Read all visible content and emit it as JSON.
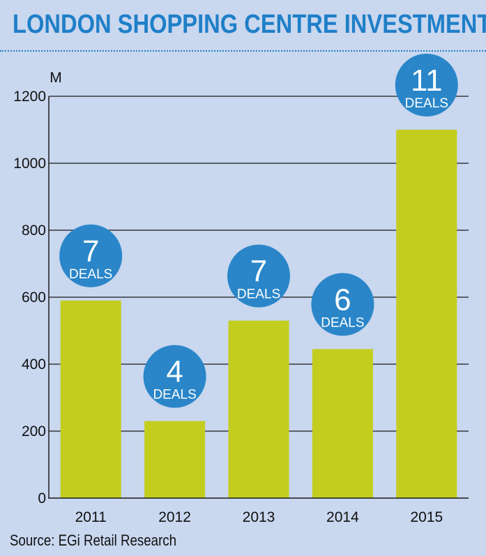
{
  "title": "LONDON SHOPPING CENTRE INVESTMENT",
  "source": "Source: EGi Retail Research",
  "colors": {
    "background": "#c9d7ef",
    "bar": "#c3cd1e",
    "bubble": "#2a86c8",
    "title": "#1f7fc8",
    "grid": "#1a1a1a"
  },
  "chart_data": {
    "type": "bar",
    "categories": [
      "2011",
      "2012",
      "2013",
      "2014",
      "2015"
    ],
    "values": [
      590,
      230,
      530,
      445,
      1100
    ],
    "annotations": [
      {
        "number": "7",
        "text": "DEALS"
      },
      {
        "number": "4",
        "text": "DEALS"
      },
      {
        "number": "7",
        "text": "DEALS"
      },
      {
        "number": "6",
        "text": "DEALS"
      },
      {
        "number": "11",
        "text": "DEALS"
      }
    ],
    "yunit": "M",
    "ylim": [
      0,
      1200
    ],
    "yticks": [
      0,
      200,
      400,
      600,
      800,
      1000,
      1200
    ],
    "grid": true,
    "legend": false
  }
}
